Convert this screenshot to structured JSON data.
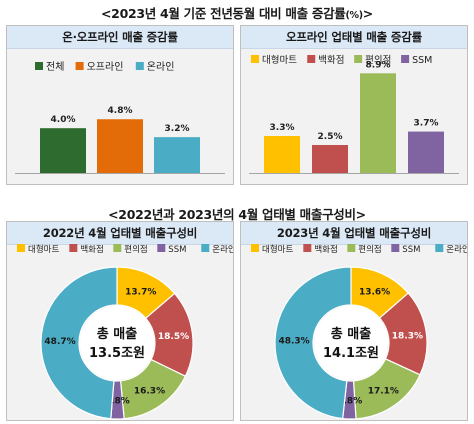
{
  "top_title": {
    "main": "<2023년 4월 기준 전년동월 대비 매출 증감률",
    "unit": "(%)",
    "end": ">"
  },
  "bottom_title": "<2022년과 2023년의 4월 업태별 매출구성비>",
  "colors": {
    "green": "#2e6b2e",
    "orange": "#e36c09",
    "teal": "#4bacc6",
    "yellow": "#ffc000",
    "red": "#c0504d",
    "lightgreen": "#9bbb59",
    "purple": "#8064a2",
    "header_bg": "#dbe9f7",
    "panel_bg": "#f2f2f2"
  },
  "chart_data": [
    {
      "type": "bar",
      "title": "온·오프라인 매출 증감률",
      "categories": [
        "전체",
        "오프라인",
        "온라인"
      ],
      "values": [
        4.0,
        4.8,
        3.2
      ],
      "value_labels": [
        "4.0%",
        "4.8%",
        "3.2%"
      ],
      "color_keys": [
        "green",
        "orange",
        "teal"
      ],
      "ylim": [
        0,
        10
      ],
      "legend": "top"
    },
    {
      "type": "bar",
      "title": "오프라인 업태별 매출 증감률",
      "categories": [
        "대형마트",
        "백화점",
        "편의점",
        "SSM"
      ],
      "values": [
        3.3,
        2.5,
        8.9,
        3.7
      ],
      "value_labels": [
        "3.3%",
        "2.5%",
        "8.9%",
        "3.7%"
      ],
      "color_keys": [
        "yellow",
        "red",
        "lightgreen",
        "purple"
      ],
      "ylim": [
        0,
        10
      ],
      "legend": "top"
    },
    {
      "type": "pie",
      "title": "2022년 4월 업태별 매출구성비",
      "categories": [
        "대형마트",
        "백화점",
        "편의점",
        "SSM",
        "온라인"
      ],
      "values": [
        13.7,
        18.5,
        16.3,
        2.8,
        48.7
      ],
      "value_labels": [
        "13.7%",
        "18.5%",
        "16.3%",
        "2.8%",
        "48.7%"
      ],
      "color_keys": [
        "yellow",
        "red",
        "lightgreen",
        "purple",
        "teal"
      ],
      "center_text": [
        "총 매출",
        "13.5조원"
      ],
      "legend": "top"
    },
    {
      "type": "pie",
      "title": "2023년 4월 업태별 매출구성비",
      "categories": [
        "대형마트",
        "백화점",
        "편의점",
        "SSM",
        "온라인"
      ],
      "values": [
        13.6,
        18.3,
        17.1,
        2.8,
        48.3
      ],
      "value_labels": [
        "13.6%",
        "18.3%",
        "17.1%",
        "2.8%",
        "48.3%"
      ],
      "color_keys": [
        "yellow",
        "red",
        "lightgreen",
        "purple",
        "teal"
      ],
      "center_text": [
        "총 매출",
        "14.1조원"
      ],
      "legend": "top"
    }
  ]
}
